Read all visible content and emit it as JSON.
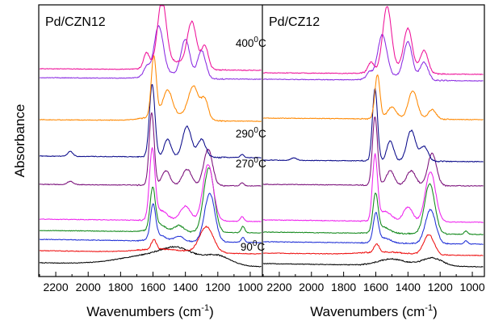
{
  "chart_data": {
    "type": "line",
    "ylabel": "Absorbance",
    "x_unit_note": "cm-1, axis reversed",
    "y_scale": "arbitrary, spectra vertically offset",
    "colors": {
      "black": "#000000",
      "red": "#ee1111",
      "blue": "#1f2fd6",
      "green": "#11881a",
      "magenta": "#ee22ee",
      "purple": "#7a0f7a",
      "navy": "#0a0a8a",
      "orange": "#ff8800",
      "violet": "#8a2be2",
      "pink": "#ee1199"
    },
    "panels": [
      {
        "title": "Pd/CZN12",
        "xlabel": "Wavenumbers (cm",
        "xlabel_sup": "-1",
        "xlabel_end": ")",
        "xlim": [
          2300,
          930
        ],
        "xticks": [
          2200,
          2000,
          1800,
          1600,
          1400,
          1200,
          1000
        ],
        "annotations": [
          {
            "value": "400",
            "sup": "0",
            "unit": "C",
            "x_data": 1090,
            "offset": 268
          },
          {
            "value": "290",
            "sup": "0",
            "unit": "C",
            "x_data": 1090,
            "offset": 156
          },
          {
            "value": "270",
            "sup": "0",
            "unit": "C",
            "x_data": 1090,
            "offset": 119
          },
          {
            "value": "90",
            "sup": "0",
            "unit": "C",
            "x_data": 1060,
            "offset": 16
          }
        ],
        "spectra": [
          {
            "color": "black",
            "offset": 0,
            "bands": [
              [
                1550,
                14,
                300
              ],
              [
                1450,
                10,
                120
              ],
              [
                1200,
                10,
                110
              ]
            ],
            "slope": 5
          },
          {
            "color": "red",
            "offset": 16,
            "bands": [
              [
                1595,
                12,
                22
              ],
              [
                1270,
                32,
                60
              ],
              [
                1550,
                4,
                200
              ]
            ],
            "slope": 4
          },
          {
            "color": "blue",
            "offset": 30,
            "bands": [
              [
                1600,
                40,
                22
              ],
              [
                1250,
                60,
                45
              ],
              [
                1570,
                8,
                60
              ],
              [
                1045,
                6,
                15
              ],
              [
                1440,
                6,
                40
              ]
            ],
            "slope": 4
          },
          {
            "color": "green",
            "offset": 42,
            "bands": [
              [
                1602,
                48,
                22
              ],
              [
                1255,
                80,
                45
              ],
              [
                1570,
                10,
                60
              ],
              [
                1045,
                8,
                15
              ],
              [
                1440,
                8,
                40
              ]
            ],
            "slope": 3
          },
          {
            "color": "magenta",
            "offset": 56,
            "bands": [
              [
                1605,
                85,
                24
              ],
              [
                1260,
                70,
                45
              ],
              [
                1400,
                18,
                45
              ],
              [
                1550,
                12,
                55
              ],
              [
                1050,
                6,
                15
              ]
            ],
            "slope": 3
          },
          {
            "color": "purple",
            "offset": 100,
            "bands": [
              [
                1608,
                90,
                22
              ],
              [
                1260,
                45,
                38
              ],
              [
                1390,
                20,
                40
              ],
              [
                1520,
                18,
                35
              ],
              [
                2110,
                4,
                25
              ],
              [
                1050,
                4,
                15
              ]
            ],
            "slope": 2
          },
          {
            "color": "navy",
            "offset": 135,
            "bands": [
              [
                1605,
                90,
                24
              ],
              [
                1390,
                38,
                38
              ],
              [
                1300,
                22,
                35
              ],
              [
                1510,
                22,
                30
              ],
              [
                2110,
                6,
                22
              ],
              [
                1050,
                4,
                15
              ]
            ],
            "slope": 2
          },
          {
            "color": "orange",
            "offset": 180,
            "bands": [
              [
                1595,
                75,
                22
              ],
              [
                1350,
                40,
                45
              ],
              [
                1280,
                24,
                30
              ],
              [
                1510,
                30,
                40
              ],
              [
                1500,
                8,
                160
              ]
            ],
            "slope": 2
          },
          {
            "color": "violet",
            "offset": 232,
            "bands": [
              [
                1565,
                60,
                40
              ],
              [
                1400,
                45,
                38
              ],
              [
                1300,
                34,
                35
              ],
              [
                1640,
                12,
                25
              ],
              [
                1500,
                6,
                150
              ]
            ],
            "slope": 2
          },
          {
            "color": "pink",
            "offset": 243,
            "bands": [
              [
                1545,
                78,
                38
              ],
              [
                1360,
                55,
                40
              ],
              [
                1280,
                28,
                30
              ],
              [
                1640,
                18,
                25
              ],
              [
                1480,
                10,
                140
              ]
            ],
            "slope": 2
          }
        ]
      },
      {
        "title": "Pd/CZ12",
        "xlabel": "Wavenumbers (cm",
        "xlabel_sup": "-1",
        "xlabel_end": ")",
        "xlim": [
          2300,
          930
        ],
        "xticks": [
          2200,
          2000,
          1800,
          1600,
          1400,
          1200,
          1000
        ],
        "annotations": [],
        "spectra": [
          {
            "color": "black",
            "offset": 0,
            "bands": [
              [
                1500,
                8,
                120
              ],
              [
                1250,
                10,
                90
              ]
            ],
            "slope": 4
          },
          {
            "color": "red",
            "offset": 14,
            "bands": [
              [
                1595,
                10,
                22
              ],
              [
                1270,
                25,
                45
              ],
              [
                1550,
                3,
                180
              ]
            ],
            "slope": 3
          },
          {
            "color": "blue",
            "offset": 28,
            "bands": [
              [
                1600,
                35,
                22
              ],
              [
                1260,
                42,
                45
              ],
              [
                1550,
                6,
                60
              ],
              [
                1040,
                4,
                15
              ]
            ],
            "slope": 3
          },
          {
            "color": "green",
            "offset": 40,
            "bands": [
              [
                1602,
                45,
                22
              ],
              [
                1265,
                62,
                45
              ],
              [
                1560,
                8,
                60
              ],
              [
                1040,
                4,
                15
              ]
            ],
            "slope": 3
          },
          {
            "color": "magenta",
            "offset": 55,
            "bands": [
              [
                1605,
                80,
                22
              ],
              [
                1260,
                62,
                45
              ],
              [
                1400,
                18,
                40
              ],
              [
                1540,
                12,
                55
              ]
            ],
            "slope": 3
          },
          {
            "color": "purple",
            "offset": 100,
            "bands": [
              [
                1605,
                85,
                22
              ],
              [
                1250,
                40,
                38
              ],
              [
                1380,
                18,
                40
              ],
              [
                1510,
                18,
                35
              ]
            ],
            "slope": 2
          },
          {
            "color": "navy",
            "offset": 130,
            "bands": [
              [
                1605,
                90,
                22
              ],
              [
                1380,
                38,
                38
              ],
              [
                1300,
                18,
                35
              ],
              [
                1510,
                25,
                30
              ],
              [
                2110,
                3,
                25
              ]
            ],
            "slope": 2
          },
          {
            "color": "orange",
            "offset": 182,
            "bands": [
              [
                1590,
                55,
                22
              ],
              [
                1370,
                35,
                40
              ],
              [
                1250,
                12,
                35
              ],
              [
                1500,
                15,
                40
              ]
            ],
            "slope": 2
          },
          {
            "color": "violet",
            "offset": 230,
            "bands": [
              [
                1560,
                52,
                40
              ],
              [
                1400,
                45,
                38
              ],
              [
                1300,
                22,
                35
              ],
              [
                1640,
                8,
                25
              ],
              [
                1500,
                5,
                140
              ]
            ],
            "slope": 2
          },
          {
            "color": "pink",
            "offset": 238,
            "bands": [
              [
                1530,
                78,
                38
              ],
              [
                1400,
                52,
                38
              ],
              [
                1300,
                28,
                35
              ],
              [
                1630,
                12,
                25
              ],
              [
                1480,
                6,
                140
              ]
            ],
            "slope": 2
          }
        ]
      }
    ]
  }
}
